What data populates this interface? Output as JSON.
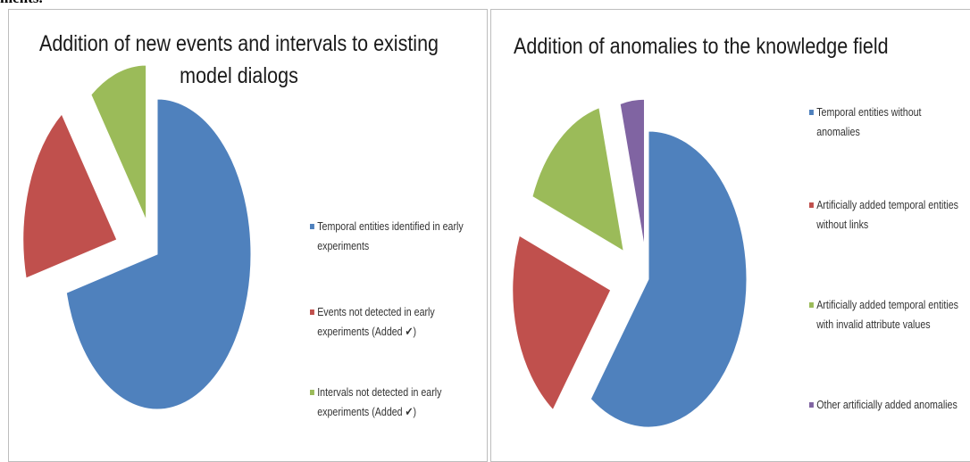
{
  "header_fragment": "ments.",
  "colors": {
    "blue": "#4f81bd",
    "red": "#c0504d",
    "green": "#9bbb59",
    "purple": "#8064a2"
  },
  "chart_data": [
    {
      "type": "pie",
      "title": "Addition of new events and intervals to existing model dialogs",
      "title_lines": [
        "Addition of new events and intervals to existing",
        "model dialogs"
      ],
      "exploded": true,
      "legend_position": "right",
      "slices": [
        {
          "label": "Temporal entities identified in early experiments",
          "label_lines": [
            "Temporal entities identified in early",
            "experiments"
          ],
          "value": 71,
          "color": "#4f81bd"
        },
        {
          "label": "Events not detected in early experiments (Added ✔)",
          "label_lines": [
            "Events not detected in early",
            "experiments (Added ✔)"
          ],
          "value": 19,
          "color": "#c0504d"
        },
        {
          "label": "Intervals not detected in early experiments (Added ✔)",
          "label_lines": [
            "Intervals not detected in early",
            "experiments (Added ✔)"
          ],
          "value": 10,
          "color": "#9bbb59"
        }
      ]
    },
    {
      "type": "pie",
      "title": "Addition of anomalies to the knowledge field",
      "title_lines": [
        "Addition of anomalies to the knowledge field"
      ],
      "exploded": true,
      "legend_position": "right",
      "slices": [
        {
          "label": "Temporal entities without anomalies",
          "label_lines": [
            "Temporal entities without",
            "anomalies"
          ],
          "value": 60,
          "color": "#4f81bd"
        },
        {
          "label": "Artificially added temporal entities without links",
          "label_lines": [
            "Artificially added temporal entities",
            "without links"
          ],
          "value": 21,
          "color": "#c0504d"
        },
        {
          "label": "Artificially added temporal entities with invalid attribute values",
          "label_lines": [
            "Artificially added temporal entities",
            "with invalid attribute values"
          ],
          "value": 15,
          "color": "#9bbb59"
        },
        {
          "label": "Other artificially added anomalies",
          "label_lines": [
            "Other artificially added anomalies"
          ],
          "value": 4,
          "color": "#8064a2"
        }
      ]
    }
  ]
}
